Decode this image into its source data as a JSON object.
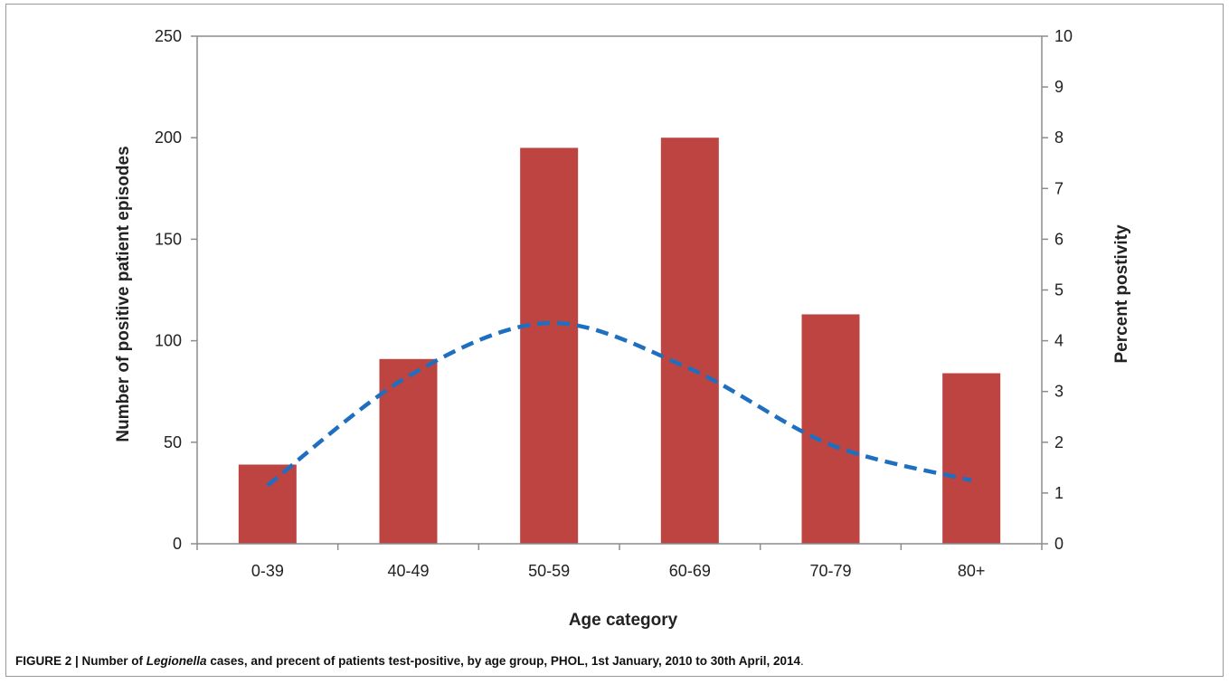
{
  "chart_data": {
    "type": "bar",
    "categories": [
      "0-39",
      "40-49",
      "50-59",
      "60-69",
      "70-79",
      "80+"
    ],
    "series": [
      {
        "kind": "bar",
        "axis": "left",
        "color": "#be4441",
        "values": [
          39,
          91,
          195,
          200,
          113,
          84
        ]
      },
      {
        "kind": "line",
        "axis": "right",
        "style": "dashed",
        "color": "#1f6fc0",
        "values": [
          1.15,
          3.3,
          4.35,
          3.45,
          1.95,
          1.25
        ]
      }
    ],
    "xlabel": "Age category",
    "ylabel": "Number of positive patient episodes",
    "y2label": "Percent postivity",
    "ylim": [
      0,
      250
    ],
    "yticks": [
      0,
      50,
      100,
      150,
      200,
      250
    ],
    "y2lim": [
      0,
      10
    ],
    "y2ticks": [
      0,
      1,
      2,
      3,
      4,
      5,
      6,
      7,
      8,
      9,
      10
    ],
    "grid": false,
    "legend": "none"
  },
  "caption": {
    "prefix": "FIGURE 2 | Number of ",
    "italic": "Legionella",
    "suffix": " cases, and precent of patients  test-positive, by age group, PHOL, 1st January, 2010 to 30th April, 2014",
    "period": "."
  }
}
